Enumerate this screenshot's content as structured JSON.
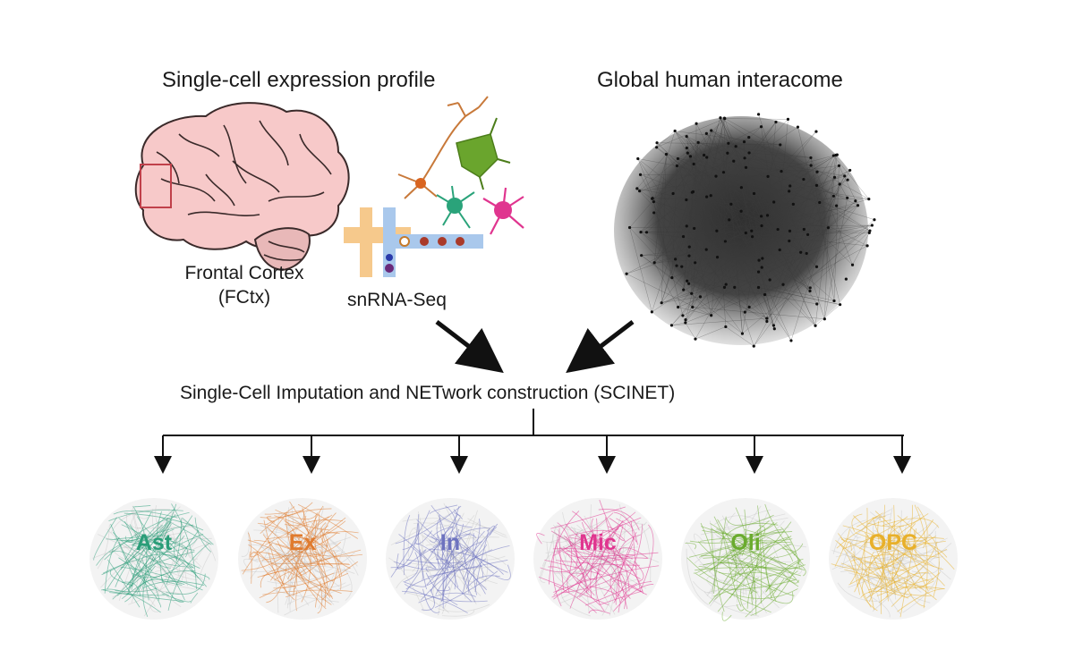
{
  "titles": {
    "expression": "Single-cell expression profile",
    "interactome": "Global human interacome"
  },
  "labels": {
    "cortex_line1": "Frontal Cortex",
    "cortex_line2": "(FCtx)",
    "snrna": "snRNA-Seq",
    "pipeline": "Single-Cell Imputation and NETwork construction (SCINET)"
  },
  "cell_types": [
    {
      "label": "Ast",
      "color": "#2a9d78"
    },
    {
      "label": "Ex",
      "color": "#e07b2e"
    },
    {
      "label": "In",
      "color": "#6d72bf"
    },
    {
      "label": "Mic",
      "color": "#e0358f"
    },
    {
      "label": "Oli",
      "color": "#6aab2e"
    },
    {
      "label": "OPC",
      "color": "#e8b02a"
    }
  ],
  "colors": {
    "brain_fill": "#f7c9c9",
    "brain_stroke": "#3a2a2a",
    "network": "#3c3c3c",
    "arrow": "#111111",
    "bar_orange": "#f6c98c",
    "bar_blue": "#a9c8ec"
  }
}
